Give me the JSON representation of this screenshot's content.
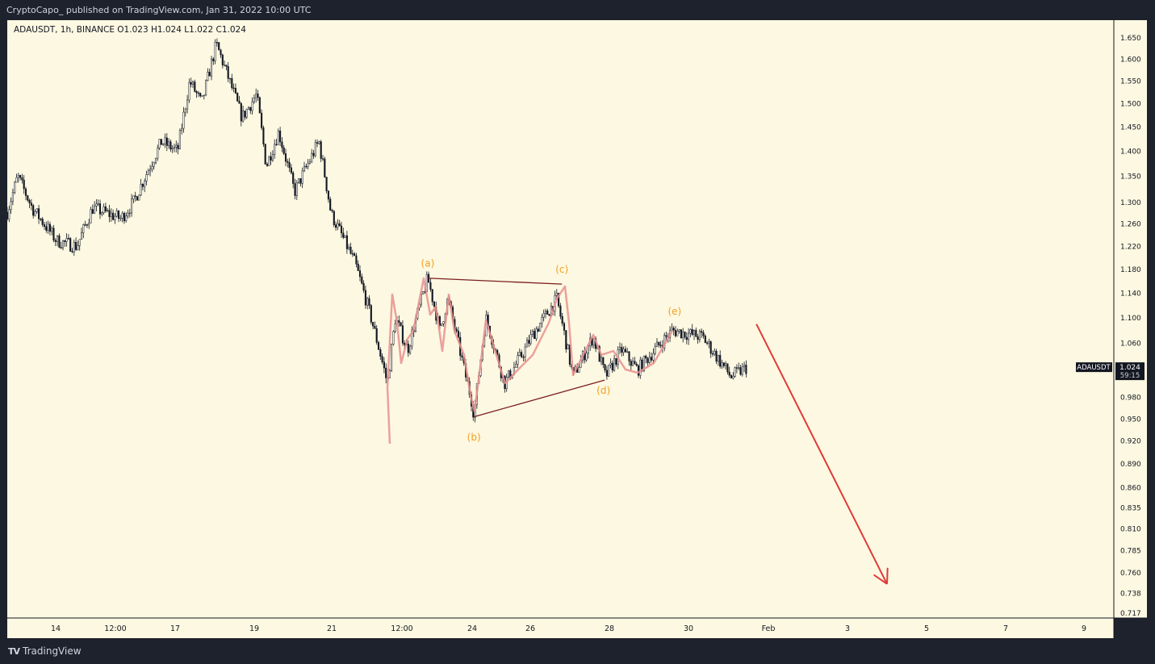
{
  "header": {
    "published": "CryptoCapo_  published on TradingView.com, Jan 31, 2022 10:00 UTC"
  },
  "legend": "ADAUSDT, 1h, BINANCE  O1.023  H1.024  L1.022  C1.024",
  "footer": {
    "brand": "TradingView",
    "logo_mark": "TV"
  },
  "colors": {
    "bg": "#fdf8e1",
    "frame": "#1e222d",
    "candle": "#131722",
    "wave": "#e8908f",
    "triangle": "#7a1f1f",
    "label": "#f0a020",
    "arrow": "#e03a3a"
  },
  "chart_data": {
    "type": "candlestick",
    "symbol": "ADAUSDT",
    "interval": "1h",
    "exchange": "BINANCE",
    "ohlc_last": {
      "open": 1.023,
      "high": 1.024,
      "low": 1.022,
      "close": 1.024
    },
    "y_scale": "log",
    "ylim": [
      0.717,
      1.65
    ],
    "y_ticks": [
      "1.650",
      "1.600",
      "1.550",
      "1.500",
      "1.450",
      "1.400",
      "1.350",
      "1.300",
      "1.260",
      "1.220",
      "1.180",
      "1.140",
      "1.100",
      "1.060",
      "0.980",
      "0.950",
      "0.920",
      "0.890",
      "0.860",
      "0.835",
      "0.810",
      "0.785",
      "0.760",
      "0.738",
      "0.717"
    ],
    "x_ticks": [
      {
        "label": "14",
        "day": 14
      },
      {
        "label": "12:00",
        "day": 15.5
      },
      {
        "label": "17",
        "day": 17
      },
      {
        "label": "19",
        "day": 19
      },
      {
        "label": "21",
        "day": 21
      },
      {
        "label": "12:00",
        "day": 22.5
      },
      {
        "label": "24",
        "day": 24
      },
      {
        "label": "26",
        "day": 26
      },
      {
        "label": "28",
        "day": 28
      },
      {
        "label": "30",
        "day": 30
      },
      {
        "label": "Feb",
        "day": 32
      },
      {
        "label": "3",
        "day": 34
      },
      {
        "label": "5",
        "day": 36
      },
      {
        "label": "7",
        "day": 38
      },
      {
        "label": "9",
        "day": 40
      }
    ],
    "price_path": [
      [
        12.78,
        1.28
      ],
      [
        13.05,
        1.35
      ],
      [
        13.41,
        1.29
      ],
      [
        14.02,
        1.23
      ],
      [
        14.53,
        1.22
      ],
      [
        14.93,
        1.29
      ],
      [
        15.64,
        1.27
      ],
      [
        15.95,
        1.3
      ],
      [
        16.66,
        1.42
      ],
      [
        17.06,
        1.4
      ],
      [
        17.37,
        1.55
      ],
      [
        17.67,
        1.5
      ],
      [
        18.04,
        1.635
      ],
      [
        18.69,
        1.47
      ],
      [
        19.06,
        1.52
      ],
      [
        19.31,
        1.37
      ],
      [
        19.63,
        1.44
      ],
      [
        20.04,
        1.32
      ],
      [
        20.67,
        1.42
      ],
      [
        20.98,
        1.28
      ],
      [
        21.5,
        1.19
      ],
      [
        21.84,
        1.1
      ],
      [
        22.19,
        1.0
      ],
      [
        22.36,
        1.1
      ],
      [
        22.62,
        1.05
      ],
      [
        23.05,
        1.165
      ],
      [
        23.31,
        1.08
      ],
      [
        23.48,
        1.13
      ],
      [
        23.83,
        1.02
      ],
      [
        24.06,
        0.955
      ],
      [
        24.47,
        1.1
      ],
      [
        25.11,
        1.0
      ],
      [
        25.81,
        1.05
      ],
      [
        26.67,
        1.13
      ],
      [
        27.08,
        1.01
      ],
      [
        27.59,
        1.07
      ],
      [
        27.9,
        1.01
      ],
      [
        28.31,
        1.05
      ],
      [
        28.71,
        1.02
      ],
      [
        29.59,
        1.08
      ],
      [
        30.35,
        1.07
      ],
      [
        31.06,
        1.01
      ],
      [
        31.47,
        1.024
      ]
    ],
    "last_price": {
      "symbol": "ADAUSDT",
      "price": "1.024",
      "countdown": "59:15"
    },
    "annotations": [
      {
        "text": "(a)",
        "day": 23.05,
        "price": 1.19
      },
      {
        "text": "(b)",
        "day": 24.06,
        "price": 0.925
      },
      {
        "text": "(c)",
        "day": 26.8,
        "price": 1.18
      },
      {
        "text": "(d)",
        "day": 27.85,
        "price": 0.99
      },
      {
        "text": "(e)",
        "day": 29.65,
        "price": 1.11
      }
    ],
    "triangle_lines": [
      [
        [
          23.05,
          1.165
        ],
        [
          26.8,
          1.155
        ]
      ],
      [
        [
          24.06,
          0.953
        ],
        [
          27.88,
          1.005
        ]
      ]
    ],
    "forecast_arrow": {
      "from": [
        31.7,
        1.09
      ],
      "to": [
        35.0,
        0.748
      ]
    }
  }
}
